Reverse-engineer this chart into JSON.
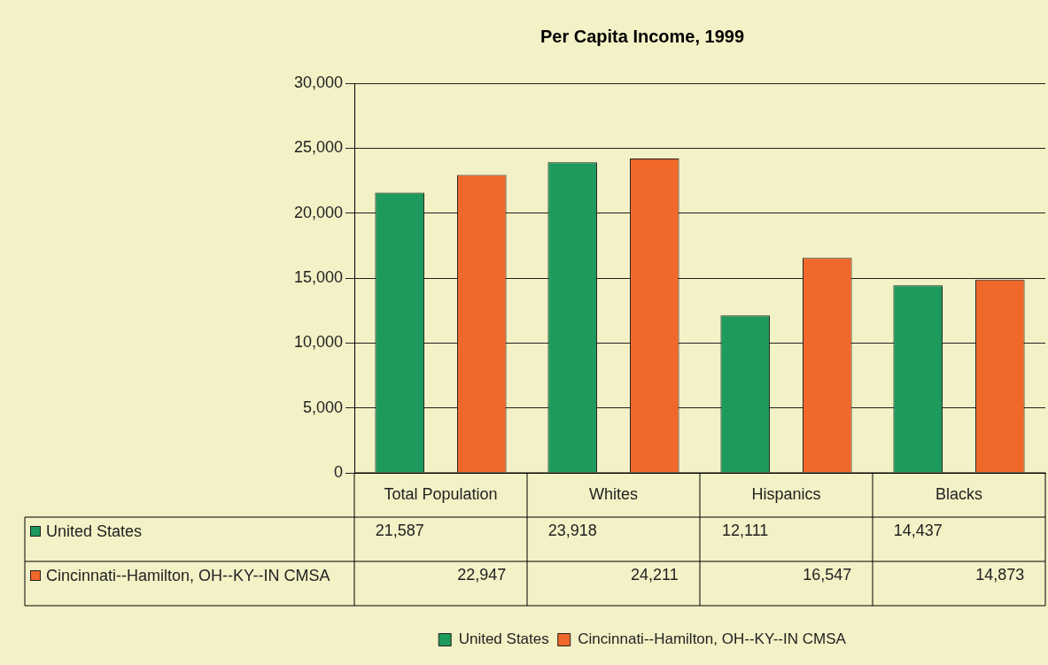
{
  "chart_data": {
    "type": "bar",
    "title": "Per Capita Income, 1999",
    "categories": [
      "Total Population",
      "Whites",
      "Hispanics",
      "Blacks"
    ],
    "series": [
      {
        "name": "United States",
        "color": "#1e9a5c",
        "values": [
          21587,
          23918,
          12111,
          14437
        ],
        "value_labels": [
          "21,587",
          "23,918",
          "12,111",
          "14,437"
        ]
      },
      {
        "name": "Cincinnati--Hamilton, OH--KY--IN CMSA",
        "color": "#f0682a",
        "values": [
          22947,
          24211,
          16547,
          14873
        ],
        "value_labels": [
          "22,947",
          "24,211",
          "16,547",
          "14,873"
        ]
      }
    ],
    "ylim": [
      0,
      30000
    ],
    "yticks": [
      0,
      {
        "value": 5000,
        "label": "5,000"
      },
      {
        "value": 10000,
        "label": "10,000"
      },
      {
        "value": 15000,
        "label": "15,000"
      },
      {
        "value": 20000,
        "label": "20,000"
      },
      {
        "value": 25000,
        "label": "25,000"
      },
      {
        "value": 30000,
        "label": "30,000"
      }
    ],
    "grid": "y",
    "legend": "bottom"
  }
}
